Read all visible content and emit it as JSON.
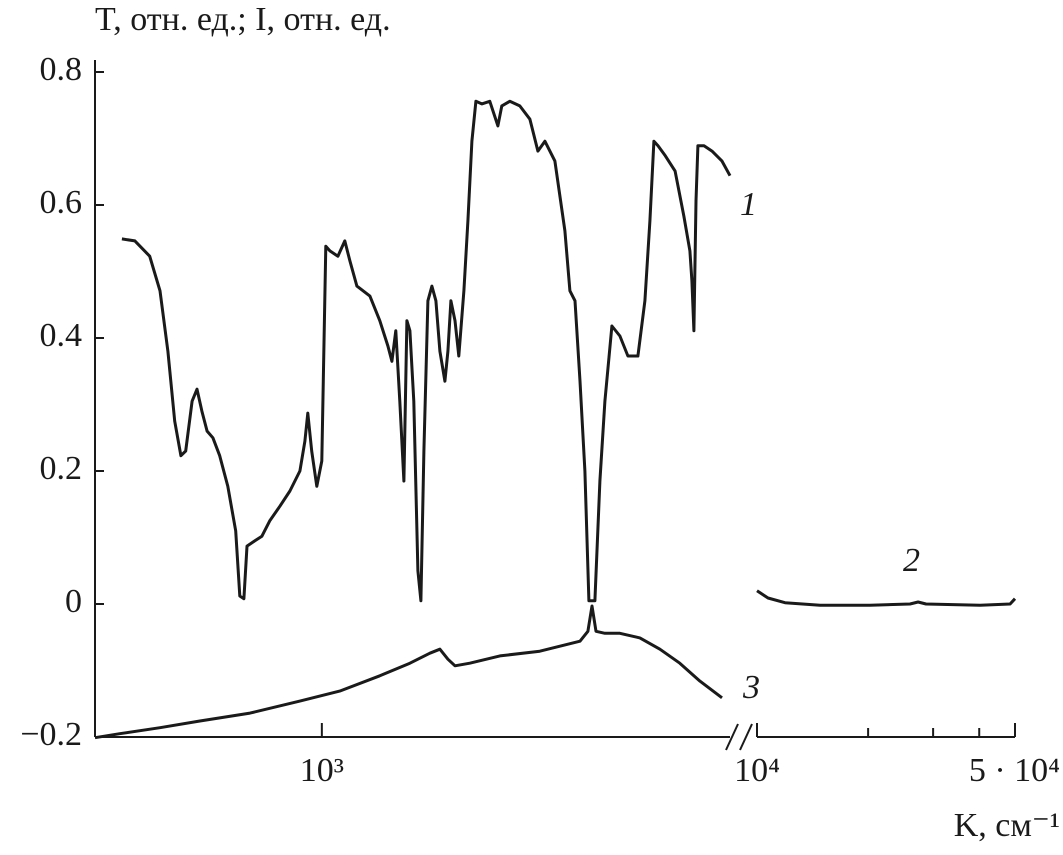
{
  "chart_data": {
    "type": "line",
    "ylabel": "T, отн. ед.; I, отн. ед.",
    "xlabel": "K, см⁻¹",
    "ylim": [
      -0.2,
      0.8
    ],
    "yticks": [
      {
        "value": -0.2,
        "label": "−0.2"
      },
      0,
      0.2,
      0.4,
      0.6,
      0.8
    ],
    "xscale": "log",
    "panels": [
      {
        "xlim": [
          400,
          5200
        ],
        "xticks": [
          {
            "value": 1000,
            "label": "10³"
          }
        ],
        "series": [
          {
            "name": "1",
            "color": "#1a1a1a",
            "x": [
              446,
              470,
              499,
              520,
              537,
              552,
              566,
              577,
              592,
              604,
              616,
              629,
              644,
              662,
              684,
              706,
              718,
              730,
              739,
              763,
              785,
              810,
              844,
              879,
              915,
              934,
              945,
              960,
              980,
              1000,
              1016,
              1033,
              1067,
              1097,
              1120,
              1152,
              1214,
              1264,
              1306,
              1327,
              1348,
              1370,
              1393,
              1410,
              1427,
              1450,
              1474,
              1492,
              1510,
              1535,
              1560,
              1585,
              1611,
              1644,
              1664,
              1684,
              1712,
              1739,
              1775,
              1804,
              1833,
              1863,
              1908,
              1971,
              2036,
              2069,
              2137,
              2225,
              2317,
              2393,
              2462,
              2563,
              2669,
              2724,
              2780,
              2837,
              2894,
              2941,
              3013,
              3074,
              3137,
              3227,
              3333,
              3443,
              3585,
              3688,
              3762,
              3824,
              3887,
              4004,
              4165,
              4317,
              4423,
              4459,
              4495,
              4532,
              4568,
              4681,
              4835,
              5035,
              5200
            ],
            "values": [
              0.549,
              0.546,
              0.523,
              0.471,
              0.38,
              0.275,
              0.223,
              0.23,
              0.305,
              0.323,
              0.29,
              0.26,
              0.25,
              0.223,
              0.177,
              0.11,
              0.012,
              0.008,
              0.087,
              0.095,
              0.102,
              0.125,
              0.147,
              0.17,
              0.2,
              0.245,
              0.287,
              0.23,
              0.177,
              0.215,
              0.538,
              0.531,
              0.523,
              0.546,
              0.516,
              0.478,
              0.463,
              0.426,
              0.388,
              0.365,
              0.411,
              0.305,
              0.185,
              0.426,
              0.411,
              0.305,
              0.05,
              0.005,
              0.23,
              0.456,
              0.478,
              0.456,
              0.38,
              0.335,
              0.38,
              0.456,
              0.426,
              0.373,
              0.471,
              0.576,
              0.696,
              0.756,
              0.752,
              0.756,
              0.719,
              0.749,
              0.756,
              0.749,
              0.729,
              0.681,
              0.696,
              0.666,
              0.561,
              0.471,
              0.456,
              0.335,
              0.2,
              0.005,
              0.005,
              0.185,
              0.305,
              0.418,
              0.403,
              0.373,
              0.373,
              0.456,
              0.576,
              0.696,
              0.689,
              0.674,
              0.651,
              0.583,
              0.531,
              0.486,
              0.411,
              0.606,
              0.689,
              0.689,
              0.681,
              0.666,
              0.644
            ]
          },
          {
            "name": "3",
            "color": "#1a1a1a",
            "x": [
              400,
              442,
              520,
              611,
              748,
              915,
              1075,
              1264,
              1427,
              1547,
              1611,
              1664,
              1712,
              1818,
              2053,
              2412,
              2837,
              2929,
              2978,
              3026,
              3137,
              3333,
              3614,
              3917,
              4246,
              4604,
              5035
            ],
            "values": [
              -0.201,
              -0.195,
              -0.186,
              -0.176,
              -0.164,
              -0.146,
              -0.131,
              -0.108,
              -0.089,
              -0.074,
              -0.068,
              -0.083,
              -0.093,
              -0.089,
              -0.078,
              -0.071,
              -0.056,
              -0.041,
              -0.003,
              -0.041,
              -0.044,
              -0.044,
              -0.051,
              -0.068,
              -0.089,
              -0.116,
              -0.141
            ]
          }
        ]
      },
      {
        "xlim": [
          10000,
          50000
        ],
        "xticks": [
          {
            "value": 10000,
            "label": "10⁴"
          },
          {
            "value": 50000,
            "label": "5 · 10⁴"
          }
        ],
        "xminor": [
          20000,
          30000,
          40000
        ],
        "series": [
          {
            "name": "2",
            "color": "#1a1a1a",
            "x": [
              10000,
              10710,
              11910,
              14820,
              20240,
              25980,
              27310,
              28700,
              40220,
              48480,
              50000
            ],
            "values": [
              0.02,
              0.009,
              0.002,
              -0.002,
              -0.002,
              0,
              0.003,
              0,
              -0.002,
              0,
              0.008
            ]
          }
        ]
      }
    ]
  }
}
